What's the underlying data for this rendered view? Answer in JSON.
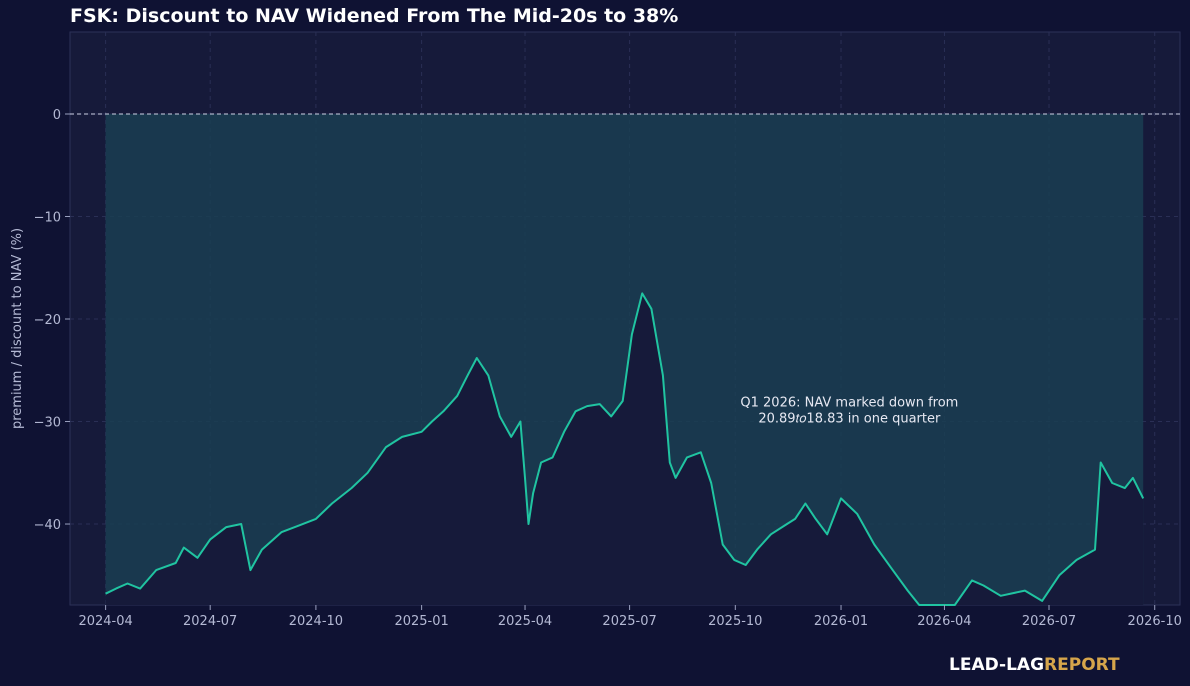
{
  "chart_data": {
    "type": "area",
    "title": "FSK: Discount to NAV Widened From The Mid-20s to 38%",
    "xlabel": "",
    "ylabel": "premium / discount to NAV (%)",
    "x_ticks": [
      "2024-04",
      "2024-07",
      "2024-10",
      "2025-01",
      "2025-04",
      "2025-07",
      "2025-10",
      "2026-01",
      "2026-04",
      "2026-07",
      "2026-10"
    ],
    "y_ticks": [
      0,
      -10,
      -20,
      -30,
      -40
    ],
    "y_tick_labels": [
      "0",
      "−10",
      "−20",
      "−30",
      "−40"
    ],
    "xlim": [
      "2024-03-01",
      "2026-10-23"
    ],
    "ylim": [
      -47.9,
      8
    ],
    "grid": true,
    "reference_line": 0,
    "shaded_band": {
      "y_from": 0,
      "x_from": "2024-04-01",
      "x_to": "2026-09-21"
    },
    "annotation": "Q1 2026: NAV marked down from\n20.89𝑡𝑜18.83 in one quarter",
    "annotation_anchor": {
      "x": "2026-01-10",
      "y": -29.5
    },
    "colors": {
      "line": "#20c4a1",
      "band": "#1a3e52",
      "plot_bg": "#161a3a",
      "page_bg": "#0f1233"
    },
    "series": [
      {
        "x": [
          "2024-04-01",
          "2024-04-10",
          "2024-04-20",
          "2024-05-01",
          "2024-05-15",
          "2024-06-01",
          "2024-06-08",
          "2024-06-20",
          "2024-07-01",
          "2024-07-15",
          "2024-07-28",
          "2024-08-05",
          "2024-08-15",
          "2024-09-01",
          "2024-09-15",
          "2024-10-01",
          "2024-10-15",
          "2024-11-01",
          "2024-11-15",
          "2024-12-01",
          "2024-12-15",
          "2025-01-01",
          "2025-01-10",
          "2025-01-20",
          "2025-02-01",
          "2025-02-10",
          "2025-02-18",
          "2025-02-28",
          "2025-03-10",
          "2025-03-20",
          "2025-03-28",
          "2025-04-01",
          "2025-04-04",
          "2025-04-08",
          "2025-04-15",
          "2025-04-25",
          "2025-05-05",
          "2025-05-15",
          "2025-05-25",
          "2025-06-05",
          "2025-06-15",
          "2025-06-25",
          "2025-07-03",
          "2025-07-12",
          "2025-07-20",
          "2025-07-30",
          "2025-08-05",
          "2025-08-10",
          "2025-08-20",
          "2025-09-01",
          "2025-09-10",
          "2025-09-20",
          "2025-09-30",
          "2025-10-10",
          "2025-10-20",
          "2025-11-01",
          "2025-11-15",
          "2025-11-22",
          "2025-12-01",
          "2025-12-10",
          "2025-12-20",
          "2026-01-01",
          "2026-01-15",
          "2026-01-30",
          "2026-02-15",
          "2026-02-28",
          "2026-03-10",
          "2026-03-25",
          "2026-04-10",
          "2026-04-25",
          "2026-05-05",
          "2026-05-20",
          "2026-06-10",
          "2026-06-25",
          "2026-07-10",
          "2026-07-25",
          "2026-08-10",
          "2026-08-15",
          "2026-08-25",
          "2026-09-05",
          "2026-09-12",
          "2026-09-21"
        ],
        "y": [
          -46.8,
          -46.3,
          -45.8,
          -46.3,
          -44.5,
          -43.8,
          -42.3,
          -43.3,
          -41.5,
          -40.3,
          -40.0,
          -44.5,
          -42.5,
          -40.8,
          -40.2,
          -39.5,
          -38.0,
          -36.5,
          -35.0,
          -32.5,
          -31.5,
          -31.0,
          -30.0,
          -29.0,
          -27.5,
          -25.5,
          -23.8,
          -25.5,
          -29.5,
          -31.5,
          -30.0,
          -35.5,
          -40.0,
          -37.0,
          -34.0,
          -33.5,
          -31.0,
          -29.0,
          -28.5,
          -28.3,
          -29.5,
          -28.0,
          -21.5,
          -17.5,
          -19.0,
          -25.5,
          -34.0,
          -35.5,
          -33.5,
          -33.0,
          -36.0,
          -42.0,
          -43.5,
          -44.0,
          -42.5,
          -41.0,
          -40.0,
          -39.5,
          -38.0,
          -39.5,
          -41.0,
          -37.5,
          -39.0,
          -42.0,
          -44.5,
          -46.5,
          -49.0,
          -50.0,
          -48.0,
          -45.5,
          -46.0,
          -47.0,
          -46.5,
          -47.5,
          -45.0,
          -43.5,
          -42.5,
          -34.0,
          -36.0,
          -36.5,
          -35.5,
          -37.5
        ]
      }
    ]
  },
  "brand": {
    "part1": "LEAD-LAG",
    "part2": "REPORT"
  }
}
